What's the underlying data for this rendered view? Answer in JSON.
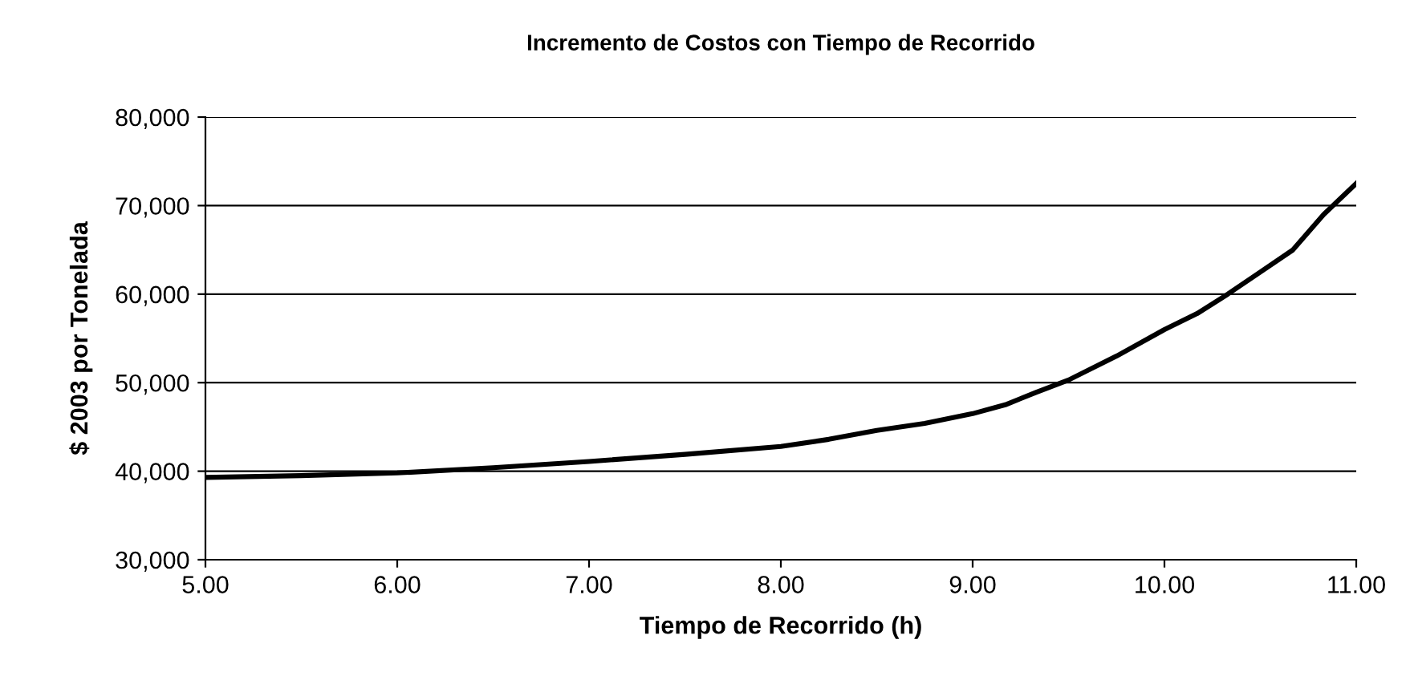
{
  "chart_data": {
    "type": "line",
    "title": "Incremento de Costos con Tiempo de Recorrido",
    "xlabel": "Tiempo de Recorrido (h)",
    "ylabel": "$ 2003 por Tonelada",
    "x": [
      5.0,
      5.5,
      6.0,
      6.5,
      7.0,
      7.5,
      8.0,
      8.25,
      8.5,
      8.75,
      9.0,
      9.17,
      9.33,
      9.5,
      9.75,
      10.0,
      10.17,
      10.33,
      10.5,
      10.67,
      10.83,
      11.0
    ],
    "series": [
      {
        "color": "#000000",
        "values": [
          39300,
          39500,
          39800,
          40400,
          41100,
          41900,
          42800,
          43600,
          44600,
          45400,
          46500,
          47500,
          48900,
          50300,
          53000,
          56000,
          57800,
          60000,
          62500,
          65000,
          69000,
          72500
        ]
      }
    ],
    "xlim": [
      5.0,
      11.0
    ],
    "xticks": [
      {
        "value": 5,
        "label": "5.00"
      },
      {
        "value": 6,
        "label": "6.00"
      },
      {
        "value": 7,
        "label": "7.00"
      },
      {
        "value": 8,
        "label": "8.00"
      },
      {
        "value": 9,
        "label": "9.00"
      },
      {
        "value": 10,
        "label": "10.00"
      },
      {
        "value": 11,
        "label": "11.00"
      }
    ],
    "ylim": [
      30000,
      80000
    ],
    "yticks": [
      {
        "value": 30000,
        "label": "30,000"
      },
      {
        "value": 40000,
        "label": "40,000"
      },
      {
        "value": 50000,
        "label": "50,000"
      },
      {
        "value": 60000,
        "label": "60,000"
      },
      {
        "value": 70000,
        "label": "70,000"
      },
      {
        "value": 80000,
        "label": "80,000"
      }
    ],
    "grid": "y",
    "marker": "none",
    "line_style": "solid",
    "legend": false
  }
}
